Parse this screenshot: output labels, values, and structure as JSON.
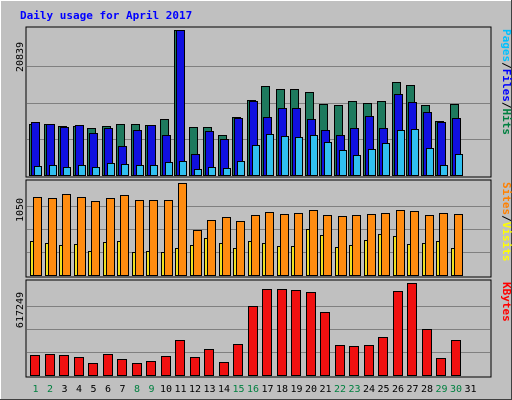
{
  "chart_data": {
    "type": "bar",
    "title": "Daily usage for April 2017",
    "days": [
      "1",
      "2",
      "3",
      "4",
      "5",
      "6",
      "7",
      "8",
      "9",
      "10",
      "11",
      "12",
      "13",
      "14",
      "15",
      "16",
      "17",
      "18",
      "19",
      "20",
      "21",
      "22",
      "23",
      "24",
      "25",
      "26",
      "27",
      "28",
      "29",
      "30",
      "31"
    ],
    "weekend_days": [
      1,
      2,
      8,
      9,
      15,
      16,
      22,
      23,
      29,
      30
    ],
    "panels": [
      {
        "id": "pages-files-hits",
        "ymax_label": "20839",
        "ymax": 20839,
        "legend": [
          {
            "text": "Pages",
            "color": "#00C0FF"
          },
          {
            "text": "/",
            "color": "#000000"
          },
          {
            "text": "Files",
            "color": "#0000FF"
          },
          {
            "text": "/",
            "color": "#000000"
          },
          {
            "text": "Hits",
            "color": "#008040"
          }
        ],
        "series": [
          {
            "name": "Hits",
            "color": "#1E7A5E",
            "values": [
              7400,
              7400,
              7100,
              7100,
              6800,
              7000,
              7400,
              7300,
              7200,
              8100,
              21000,
              6900,
              6900,
              5800,
              8400,
              10800,
              12800,
              12300,
              12300,
              11900,
              10200,
              10000,
              10600,
              10400,
              10600,
              13400,
              13000,
              10100,
              7700,
              10200,
              0
            ]
          },
          {
            "name": "Files",
            "color": "#1010E0",
            "values": [
              7600,
              7400,
              6900,
              7200,
              6000,
              6700,
              4200,
              6500,
              7200,
              5700,
              21000,
              3000,
              6300,
              5200,
              8200,
              10600,
              8300,
              9700,
              9700,
              8000,
              6400,
              5700,
              6800,
              8500,
              6700,
              11700,
              10500,
              9100,
              7600,
              8200,
              0
            ]
          },
          {
            "name": "Pages",
            "color": "#30C0F0",
            "values": [
              1300,
              1500,
              1200,
              1500,
              1100,
              1700,
              1600,
              1500,
              1400,
              1800,
              2000,
              900,
              1200,
              1000,
              2000,
              4300,
              5900,
              5600,
              5400,
              5800,
              4800,
              3600,
              2900,
              3700,
              4600,
              6400,
              6600,
              3900,
              1400,
              3000,
              0
            ]
          }
        ]
      },
      {
        "id": "sites-visits",
        "ymax_label": "1050",
        "ymax": 1050,
        "legend": [
          {
            "text": "Sites",
            "color": "#FF8000"
          },
          {
            "text": "/",
            "color": "#000000"
          },
          {
            "text": "Visits",
            "color": "#FFFF00"
          }
        ],
        "series": [
          {
            "name": "Visits",
            "color": "#F0E020",
            "values": [
              390,
              360,
              340,
              350,
              270,
              380,
              390,
              260,
              270,
              260,
              310,
              340,
              420,
              370,
              310,
              390,
              360,
              330,
              330,
              530,
              460,
              320,
              340,
              400,
              470,
              450,
              350,
              370,
              390,
              310,
              0
            ]
          },
          {
            "name": "Sites",
            "color": "#FF8C10",
            "values": [
              890,
              880,
              930,
              890,
              840,
              880,
              910,
              860,
              860,
              860,
              1050,
              510,
              630,
              660,
              620,
              690,
              720,
              700,
              710,
              740,
              690,
              670,
              690,
              700,
              710,
              740,
              730,
              680,
              710,
              700,
              0
            ]
          }
        ]
      },
      {
        "id": "kbytes",
        "ymax_label": "617249",
        "ymax": 617249,
        "legend": [
          {
            "text": "KBytes",
            "color": "#FF0000"
          }
        ],
        "series": [
          {
            "name": "KBytes",
            "color": "#F01010",
            "values": [
              133000,
              140000,
              133000,
              123000,
              82000,
              140000,
              107000,
              83000,
              97000,
              130000,
              238000,
              120000,
              173000,
              85000,
              211000,
              462000,
              574000,
              574000,
              570000,
              560000,
              420000,
              201000,
              196000,
              201000,
              252000,
              565000,
              634000,
              311000,
              113000,
              233000,
              0
            ]
          }
        ]
      }
    ]
  }
}
